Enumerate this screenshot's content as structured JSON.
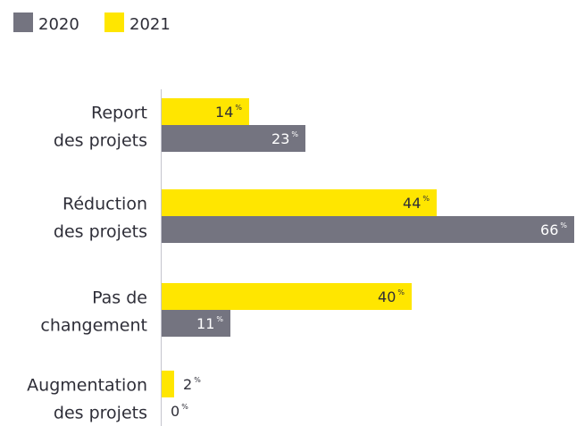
{
  "chart_data": {
    "type": "bar",
    "orientation": "horizontal",
    "categories": [
      [
        "Report",
        "des projets"
      ],
      [
        "Réduction",
        "des projets"
      ],
      [
        "Pas de",
        "changement"
      ],
      [
        "Augmentation",
        "des projets"
      ]
    ],
    "series": [
      {
        "name": "2021",
        "color": "#ffe600",
        "values": [
          14,
          44,
          40,
          2
        ],
        "value_labels": [
          "14%",
          "44%",
          "40%",
          "2%"
        ]
      },
      {
        "name": "2020",
        "color": "#747480",
        "values": [
          23,
          66,
          11,
          0
        ],
        "value_labels": [
          "23%",
          "66%",
          "11%",
          "0%"
        ]
      }
    ],
    "legend": "top-left"
  }
}
